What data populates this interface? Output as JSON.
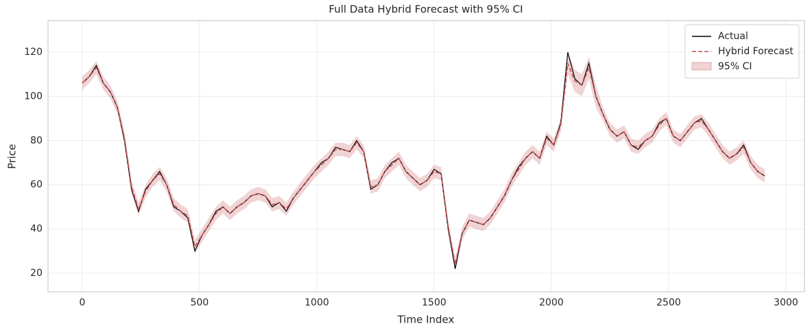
{
  "chart_data": {
    "type": "line",
    "title": "Full Data Hybrid Forecast with 95% CI",
    "xlabel": "Time Index",
    "ylabel": "Price",
    "x": [
      0,
      30,
      60,
      90,
      120,
      150,
      180,
      210,
      240,
      270,
      300,
      330,
      360,
      390,
      420,
      450,
      480,
      510,
      540,
      570,
      600,
      630,
      660,
      690,
      720,
      750,
      780,
      810,
      840,
      870,
      900,
      930,
      960,
      990,
      1020,
      1050,
      1080,
      1110,
      1140,
      1170,
      1200,
      1230,
      1260,
      1290,
      1320,
      1350,
      1380,
      1410,
      1440,
      1470,
      1500,
      1530,
      1560,
      1590,
      1620,
      1650,
      1680,
      1710,
      1740,
      1770,
      1800,
      1830,
      1860,
      1890,
      1920,
      1950,
      1980,
      2010,
      2040,
      2070,
      2100,
      2130,
      2160,
      2190,
      2220,
      2250,
      2280,
      2310,
      2340,
      2370,
      2400,
      2430,
      2460,
      2490,
      2520,
      2550,
      2580,
      2610,
      2640,
      2670,
      2700,
      2730,
      2760,
      2790,
      2820,
      2850,
      2880,
      2910
    ],
    "ci": {
      "name": "95% CI",
      "color": "#c44e52",
      "lower": [
        103,
        106,
        110,
        103,
        99,
        92,
        78,
        56,
        46,
        54,
        59,
        62,
        57,
        48,
        45,
        43,
        29,
        34,
        39,
        44,
        47,
        44,
        47,
        49,
        52,
        53,
        52,
        48,
        49,
        46,
        51,
        55,
        59,
        63,
        66,
        69,
        73,
        73,
        72,
        76,
        72,
        56,
        57,
        63,
        66,
        69,
        63,
        60,
        57,
        59,
        63,
        62,
        38,
        21,
        35,
        41,
        40,
        39,
        42,
        47,
        52,
        59,
        64,
        69,
        72,
        69,
        78,
        75,
        84,
        110,
        102,
        100,
        108,
        95,
        89,
        82,
        79,
        81,
        75,
        74,
        77,
        79,
        84,
        87,
        79,
        77,
        81,
        85,
        86,
        82,
        77,
        72,
        69,
        71,
        74,
        67,
        63,
        61
      ],
      "upper": [
        109,
        112,
        116,
        109,
        105,
        98,
        84,
        62,
        52,
        60,
        65,
        68,
        63,
        54,
        51,
        49,
        35,
        40,
        45,
        50,
        53,
        50,
        53,
        55,
        58,
        59,
        58,
        54,
        55,
        52,
        57,
        61,
        65,
        69,
        72,
        75,
        79,
        79,
        78,
        82,
        78,
        62,
        63,
        69,
        72,
        75,
        69,
        66,
        63,
        65,
        69,
        68,
        44,
        27,
        41,
        47,
        46,
        45,
        48,
        53,
        58,
        65,
        70,
        75,
        78,
        75,
        84,
        81,
        90,
        120,
        112,
        110,
        118,
        105,
        95,
        88,
        85,
        87,
        81,
        80,
        83,
        85,
        90,
        93,
        85,
        83,
        87,
        91,
        92,
        88,
        83,
        78,
        75,
        77,
        80,
        73,
        69,
        67
      ]
    },
    "series": [
      {
        "name": "Actual",
        "color": "#000000",
        "dashed": false,
        "values": [
          106,
          109,
          114,
          106,
          102,
          95,
          80,
          58,
          48,
          58,
          62,
          66,
          60,
          50,
          48,
          45,
          30,
          37,
          42,
          48,
          50,
          47,
          50,
          52,
          55,
          56,
          55,
          50,
          52,
          48,
          54,
          58,
          62,
          66,
          70,
          72,
          77,
          76,
          75,
          80,
          75,
          58,
          60,
          66,
          70,
          72,
          66,
          63,
          60,
          62,
          67,
          65,
          40,
          22,
          38,
          44,
          43,
          42,
          45,
          50,
          55,
          62,
          68,
          72,
          75,
          72,
          82,
          78,
          88,
          120,
          108,
          105,
          115,
          100,
          92,
          85,
          82,
          84,
          78,
          76,
          80,
          82,
          88,
          90,
          82,
          80,
          84,
          88,
          90,
          85,
          80,
          75,
          72,
          74,
          78,
          70,
          66,
          64
        ]
      },
      {
        "name": "Hybrid Forecast",
        "color": "#c44e52",
        "dashed": true,
        "values": [
          106,
          109,
          113,
          106,
          102,
          95,
          81,
          59,
          49,
          57,
          62,
          65,
          60,
          51,
          48,
          46,
          32,
          37,
          42,
          47,
          50,
          47,
          50,
          52,
          55,
          56,
          55,
          51,
          52,
          49,
          54,
          58,
          62,
          66,
          69,
          72,
          76,
          76,
          75,
          79,
          75,
          59,
          60,
          66,
          69,
          72,
          66,
          63,
          60,
          62,
          66,
          65,
          41,
          24,
          38,
          44,
          43,
          42,
          45,
          50,
          55,
          62,
          67,
          72,
          75,
          72,
          81,
          78,
          87,
          115,
          107,
          105,
          113,
          100,
          92,
          85,
          82,
          84,
          78,
          77,
          80,
          82,
          87,
          90,
          82,
          80,
          84,
          88,
          89,
          85,
          80,
          75,
          72,
          74,
          77,
          70,
          66,
          64
        ]
      }
    ],
    "xlim": [
      -146,
      3079
    ],
    "ylim": [
      11.6,
      134.3
    ],
    "xticks": [
      0,
      500,
      1000,
      1500,
      2000,
      2500,
      3000
    ],
    "yticks": [
      20,
      40,
      60,
      80,
      100,
      120
    ],
    "grid": true,
    "legend": "upper right"
  }
}
